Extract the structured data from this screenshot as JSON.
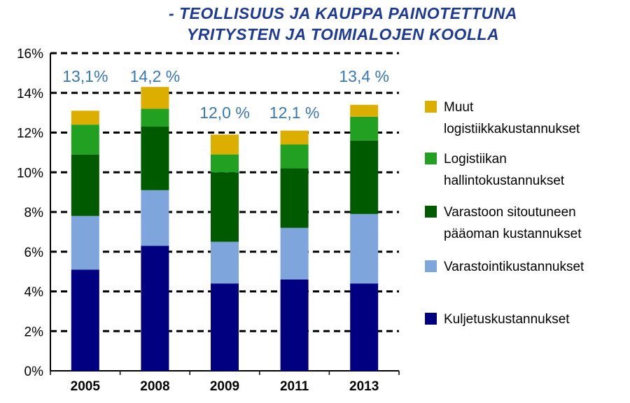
{
  "title_line1": "- TEOLLISUUS JA KAUPPA PAINOTETTUNA",
  "title_line2": "YRITYSTEN JA TOIMIALOJEN KOOLLA",
  "chart_data": {
    "type": "bar",
    "stacked": true,
    "title": "- TEOLLISUUS JA KAUPPA PAINOTETTUNA YRITYSTEN JA TOIMIALOJEN KOOLLA",
    "categories": [
      "2005",
      "2008",
      "2009",
      "2011",
      "2013"
    ],
    "ylim": [
      0,
      16
    ],
    "yticks": [
      "0%",
      "2%",
      "4%",
      "6%",
      "8%",
      "10%",
      "12%",
      "14%",
      "16%"
    ],
    "grid": "dashed horizontal",
    "legend_position": "right",
    "series": [
      {
        "name": "Kuljetuskustannukset",
        "color": "#000080",
        "values": [
          5.1,
          6.3,
          4.4,
          4.6,
          4.4
        ]
      },
      {
        "name": "Varastointikustannukset",
        "color": "#7fa6dc",
        "values": [
          2.7,
          2.8,
          2.1,
          2.6,
          3.5
        ]
      },
      {
        "name": "Varastoon sitoutuneen pääoman kustannukset",
        "color": "#005a00",
        "values": [
          3.1,
          3.2,
          3.5,
          3.0,
          3.7
        ]
      },
      {
        "name": "Logistiikan hallintokustannukset",
        "color": "#22a022",
        "values": [
          1.5,
          0.9,
          0.9,
          1.2,
          1.2
        ]
      },
      {
        "name": "Muut logistiikkakustannukset",
        "color": "#dcae00",
        "values": [
          0.7,
          1.1,
          1.0,
          0.7,
          0.6
        ]
      }
    ],
    "totals": [
      13.1,
      14.2,
      12.0,
      12.1,
      13.4
    ],
    "total_labels": [
      "13,1%",
      "14,2 %",
      "12,0 %",
      "12,1 %",
      "13,4 %"
    ],
    "legend": [
      {
        "lines": [
          "Muut",
          "logistiikkakustannukset"
        ],
        "color": "#dcae00"
      },
      {
        "lines": [
          "Logistiikan",
          "hallintokustannukset"
        ],
        "color": "#22a022"
      },
      {
        "lines": [
          "Varastoon sitoutuneen",
          "pääoman kustannukset"
        ],
        "color": "#005a00"
      },
      {
        "lines": [
          "Varastointikustannukset"
        ],
        "color": "#7fa6dc"
      },
      {
        "lines": [
          "Kuljetuskustannukset"
        ],
        "color": "#000080"
      }
    ]
  }
}
